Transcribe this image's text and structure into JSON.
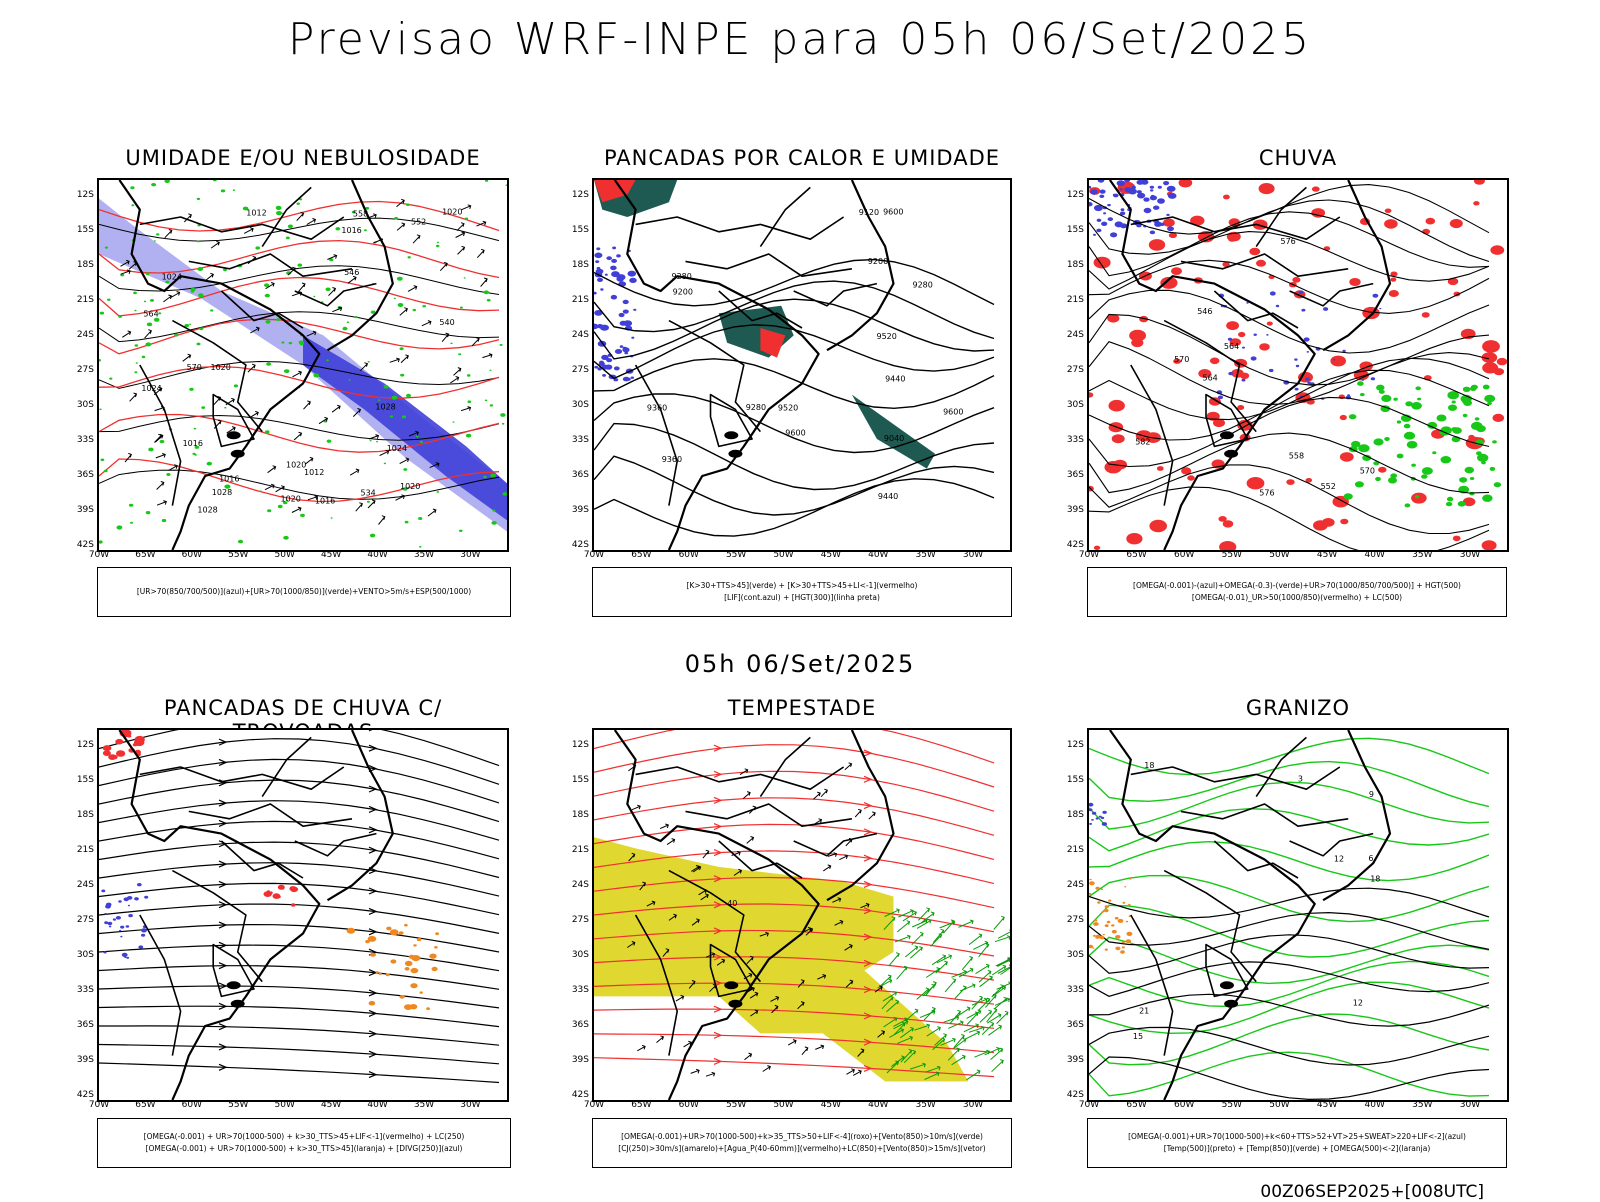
{
  "header": {
    "title": "Previsao WRF-INPE  para 05h 06/Set/2025",
    "mid_label": "05h 06/Set/2025",
    "footer": "00Z06SEP2025+[008UTC]"
  },
  "axes": {
    "lat_labels": [
      "12S",
      "15S",
      "18S",
      "21S",
      "24S",
      "27S",
      "30S",
      "33S",
      "36S",
      "39S",
      "42S"
    ],
    "lon_labels": [
      "70W",
      "65W",
      "60W",
      "55W",
      "50W",
      "45W",
      "40W",
      "35W",
      "30W"
    ]
  },
  "panels": [
    {
      "title": "UMIDADE E/OU NEBULOSIDADE",
      "legend": [
        "[UR>70(850/700/500)](azul)+[UR>70(1000/850)](verde)+VENTO>5m/s+ESP(500/1000)"
      ],
      "labels": [
        "1016",
        "1012",
        "1016",
        "1020",
        "1016",
        "1020",
        "1024",
        "1020",
        "1020",
        "1020",
        "1016",
        "1024",
        "1028",
        "1028",
        "1028",
        "1024",
        "570",
        "564",
        "558",
        "552",
        "546",
        "540",
        "534",
        "1012"
      ]
    },
    {
      "title": "PANCADAS POR CALOR E UMIDADE",
      "legend": [
        "[K>30+TTS>45](verde) + [K>30+TTS>45+LI<-1](vermelho)",
        "[LIF](cont.azul) + [HGT(300)](linha preta)"
      ],
      "labels": [
        "9600",
        "9600",
        "9520",
        "9440",
        "9280",
        "9520",
        "9440",
        "9360",
        "9280",
        "9200",
        "9120",
        "9040",
        "9360",
        "9280",
        "9200",
        "9600"
      ]
    },
    {
      "title": "CHUVA",
      "legend": [
        "[OMEGA(-0.001)-(azul)+OMEGA(-0.3)-(verde)+UR>70(1000/850/700/500)] + HGT(500)",
        "[OMEGA(-0.01)_UR>50(1000/850)(vermelho) + LC(500)"
      ],
      "labels": [
        "582",
        "576",
        "570",
        "564",
        "558",
        "552",
        "546",
        "576",
        "570",
        "564"
      ]
    },
    {
      "title": "PANCADAS DE CHUVA C/ TROVOADAS",
      "legend": [
        "[OMEGA(-0.001) + UR>70(1000-500) + k>30_TTS>45+LIF<-1](vermelho) + LC(250)",
        "[OMEGA(-0.001) + UR>70(1000-500) + k>30_TTS>45](laranja) + [DIVG(250)](azul)"
      ],
      "labels": []
    },
    {
      "title": "TEMPESTADE",
      "legend": [
        "[OMEGA(-0.001)+UR>70(1000-500)+k>35_TTS>50+LIF<-4](roxo)+[Vento(850)>10m/s](verde)",
        "[CJ(250)>30m/s](amarelo)+[Agua_P(40-60mm)](vermelho)+LC(850)+[Vento(850)>15m/s](vetor)"
      ],
      "labels": [
        "40"
      ]
    },
    {
      "title": "GRANIZO",
      "legend": [
        "[OMEGA(-0.001)+UR>70(1000-500)+k<60+TTS>52+VT>25+SWEAT>220+LIF<-2](azul)",
        "[Temp(500)](preto) + [Temp(850)](verde) + [OMEGA(500)<-2](laranja)"
      ],
      "labels": [
        "12",
        "18",
        "21",
        "12",
        "18",
        "15",
        "9",
        "6",
        "3"
      ]
    }
  ],
  "colors": {
    "blue_fill": "#4040d8",
    "lightblue_fill": "#a8a8f0",
    "green": "#18c818",
    "red": "#f03030",
    "darkteal": "#1e5a52",
    "orange": "#f08820",
    "yellow": "#e0d830"
  }
}
